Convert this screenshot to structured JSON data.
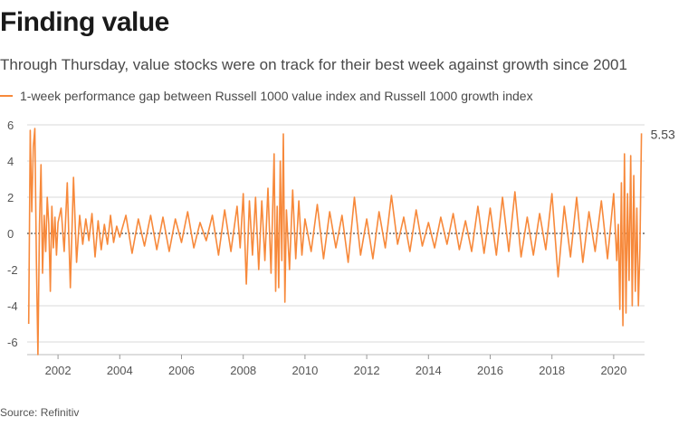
{
  "header": {
    "title": "Finding value",
    "subtitle": "Through Thursday, value stocks were on track for their best week against growth since 2001"
  },
  "footer": {
    "source": "Source: Refinitiv"
  },
  "chart_data": {
    "type": "line",
    "title": "Finding value",
    "subtitle": "Through Thursday, value stocks were on track for their best week against growth since 2001",
    "xlabel": "",
    "ylabel": "",
    "x_ticks": [
      "2002",
      "2004",
      "2006",
      "2008",
      "2010",
      "2012",
      "2014",
      "2016",
      "2018",
      "2020"
    ],
    "y_ticks": [
      6,
      4,
      2,
      0,
      -2,
      -4,
      -6
    ],
    "xlim": [
      2001.0,
      2021.0
    ],
    "ylim": [
      -6.8,
      6.0
    ],
    "grid": true,
    "legend_position": "top-left",
    "end_label": "5.53",
    "color": "#f7893b",
    "series": [
      {
        "name": "1-week performance gap between Russell 1000 value index and Russell 1000 growth index",
        "x": [
          2001.05,
          2001.1,
          2001.15,
          2001.2,
          2001.25,
          2001.3,
          2001.35,
          2001.4,
          2001.45,
          2001.5,
          2001.55,
          2001.6,
          2001.65,
          2001.7,
          2001.75,
          2001.8,
          2001.85,
          2001.9,
          2001.95,
          2002.0,
          2002.1,
          2002.2,
          2002.3,
          2002.4,
          2002.5,
          2002.6,
          2002.7,
          2002.8,
          2002.9,
          2003.0,
          2003.1,
          2003.2,
          2003.3,
          2003.4,
          2003.5,
          2003.6,
          2003.7,
          2003.8,
          2003.9,
          2004.0,
          2004.2,
          2004.4,
          2004.6,
          2004.8,
          2005.0,
          2005.2,
          2005.4,
          2005.6,
          2005.8,
          2006.0,
          2006.2,
          2006.4,
          2006.6,
          2006.8,
          2007.0,
          2007.2,
          2007.4,
          2007.6,
          2007.8,
          2007.9,
          2008.0,
          2008.1,
          2008.2,
          2008.3,
          2008.4,
          2008.5,
          2008.6,
          2008.7,
          2008.8,
          2008.9,
          2009.0,
          2009.05,
          2009.1,
          2009.15,
          2009.2,
          2009.25,
          2009.3,
          2009.35,
          2009.4,
          2009.5,
          2009.6,
          2009.7,
          2009.8,
          2009.9,
          2010.0,
          2010.2,
          2010.4,
          2010.6,
          2010.8,
          2011.0,
          2011.2,
          2011.4,
          2011.6,
          2011.8,
          2012.0,
          2012.2,
          2012.4,
          2012.6,
          2012.8,
          2013.0,
          2013.2,
          2013.4,
          2013.6,
          2013.8,
          2014.0,
          2014.2,
          2014.4,
          2014.6,
          2014.8,
          2015.0,
          2015.2,
          2015.4,
          2015.6,
          2015.8,
          2016.0,
          2016.2,
          2016.4,
          2016.6,
          2016.8,
          2017.0,
          2017.2,
          2017.4,
          2017.6,
          2017.8,
          2018.0,
          2018.2,
          2018.4,
          2018.6,
          2018.8,
          2019.0,
          2019.2,
          2019.4,
          2019.6,
          2019.8,
          2020.0,
          2020.1,
          2020.15,
          2020.2,
          2020.25,
          2020.3,
          2020.35,
          2020.4,
          2020.45,
          2020.5,
          2020.55,
          2020.6,
          2020.65,
          2020.7,
          2020.75,
          2020.8,
          2020.85,
          2020.9
        ],
        "values": [
          -5.0,
          5.7,
          1.2,
          4.8,
          5.8,
          -1.5,
          -6.7,
          0.5,
          3.8,
          -2.2,
          1.0,
          -1.0,
          2.0,
          0.5,
          -3.2,
          1.5,
          -0.8,
          0.9,
          -1.2,
          0.6,
          1.4,
          -1.0,
          2.8,
          -3.0,
          3.1,
          -1.6,
          1.0,
          -0.6,
          0.8,
          -0.4,
          1.1,
          -1.3,
          0.7,
          -0.9,
          0.5,
          -0.6,
          1.0,
          -0.5,
          0.4,
          -0.2,
          1.0,
          -1.1,
          0.8,
          -0.7,
          1.0,
          -0.9,
          0.9,
          -1.0,
          0.8,
          -0.5,
          1.2,
          -0.8,
          0.6,
          -0.4,
          1.0,
          -1.2,
          1.3,
          -1.0,
          1.5,
          -0.8,
          2.2,
          -2.8,
          1.8,
          -1.2,
          2.0,
          -2.0,
          1.8,
          -1.5,
          2.5,
          -2.2,
          4.4,
          -3.2,
          1.5,
          -3.0,
          4.0,
          -1.5,
          5.5,
          -3.8,
          1.3,
          -2.0,
          2.4,
          -1.4,
          1.8,
          -1.2,
          0.8,
          -1.0,
          1.6,
          -1.4,
          1.2,
          -0.8,
          1.0,
          -1.6,
          2.0,
          -1.2,
          0.8,
          -1.4,
          1.2,
          -0.8,
          2.1,
          -0.6,
          0.9,
          -1.0,
          1.3,
          -0.7,
          0.6,
          -0.8,
          0.9,
          -0.6,
          1.1,
          -0.9,
          0.7,
          -1.0,
          1.5,
          -1.1,
          1.4,
          -1.2,
          2.0,
          -1.0,
          2.3,
          -1.3,
          0.9,
          -1.2,
          1.1,
          -0.9,
          2.2,
          -2.4,
          1.5,
          -1.3,
          2.0,
          -1.6,
          1.2,
          -1.0,
          1.8,
          -1.4,
          2.2,
          -1.5,
          0.5,
          -4.2,
          2.8,
          -5.1,
          4.4,
          -4.4,
          2.2,
          -2.6,
          4.3,
          -4.0,
          3.2,
          -3.2,
          1.4,
          -4.0,
          -0.8,
          5.53
        ]
      }
    ]
  }
}
